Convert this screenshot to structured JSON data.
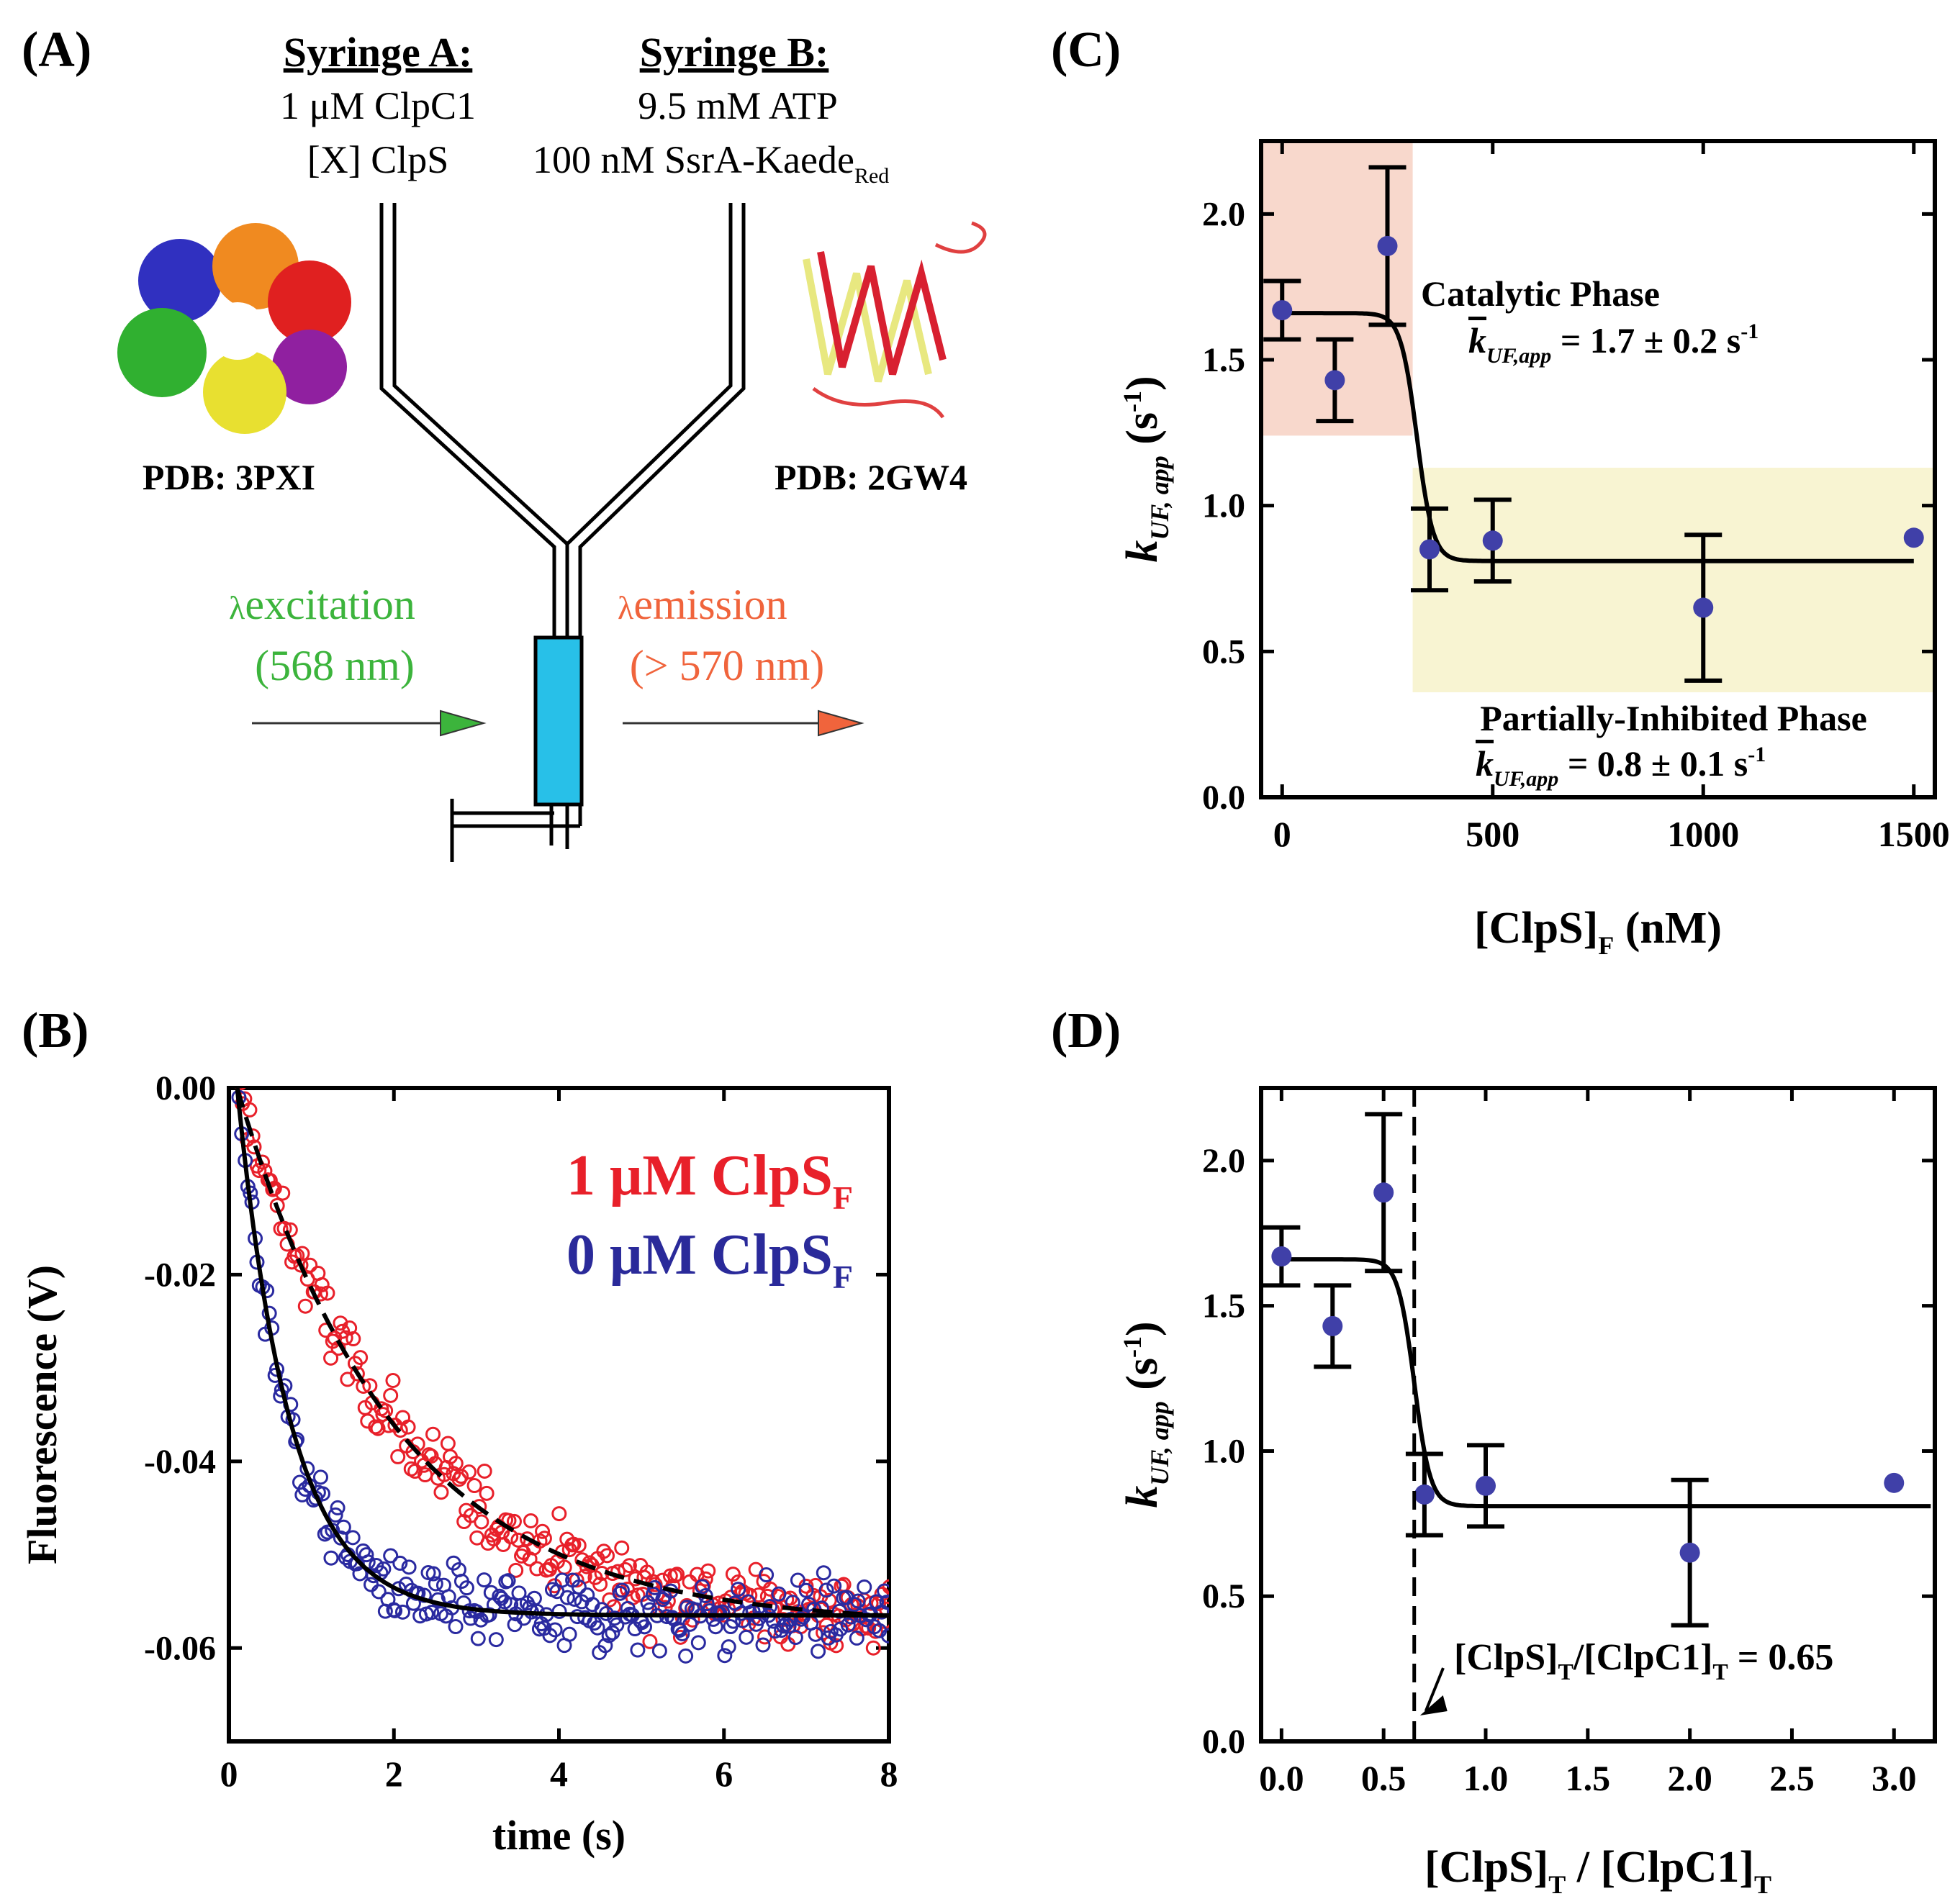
{
  "panels": {
    "a": {
      "letter": "(A)",
      "syringe_a": {
        "title": "Syringe A:",
        "line1": "1 μM ClpC1",
        "line2": "[X] ClpS"
      },
      "syringe_b": {
        "title": "Syringe B:",
        "line1": "9.5 mM ATP",
        "line2": "100 nM SsrA-Kaede",
        "line2_sub": "Red"
      },
      "pdb_left": "PDB: 3PXI",
      "pdb_right": "PDB: 2GW4",
      "excitation": {
        "lambda": "λ",
        "word": "excitation",
        "nm": "(568 nm)"
      },
      "emission": {
        "lambda": "λ",
        "word": "emission",
        "nm": "(> 570 nm)"
      },
      "colors": {
        "excitation": "#3cb43c",
        "emission": "#f0643c",
        "cuvette": "#28c0e8"
      }
    },
    "b": {
      "letter": "(B)"
    },
    "c": {
      "letter": "(C)"
    },
    "d": {
      "letter": "(D)"
    }
  },
  "chart_data": [
    {
      "id": "B",
      "type": "scatter",
      "xlabel": "time (s)",
      "ylabel": "Fluorescence (V)",
      "xlim": [
        0,
        8
      ],
      "ylim": [
        -0.07,
        0.0
      ],
      "xticks": [
        0,
        2,
        4,
        6,
        8
      ],
      "yticks": [
        0.0,
        -0.02,
        -0.04,
        -0.06
      ],
      "ytick_labels": [
        "0.00",
        "-0.02",
        "-0.04",
        "-0.06"
      ],
      "legend": [
        {
          "text": "1 μM ClpS",
          "sub": "F",
          "color": "#e8202a"
        },
        {
          "text": "0 μM ClpS",
          "sub": "F",
          "color": "#2a2a9a"
        }
      ],
      "series": [
        {
          "name": "1 μM ClpS_F",
          "color": "#e8202a",
          "marker": "open-circle",
          "fit": {
            "style": "dashed",
            "y0": 0.0,
            "yinf": -0.0575,
            "k": 0.52,
            "t0": 0.1
          },
          "n_points": 260,
          "noise": 0.0028
        },
        {
          "name": "0 μM ClpS_F",
          "color": "#2a2aa0",
          "marker": "open-circle",
          "fit": {
            "style": "solid",
            "y0": 0.0,
            "yinf": -0.0565,
            "k": 1.55,
            "t0": 0.1
          },
          "n_points": 260,
          "noise": 0.0028
        }
      ]
    },
    {
      "id": "C",
      "type": "scatter",
      "xlabel": "[ClpS]",
      "xlabel_sub": "F",
      "xlabel_tail": " (nM)",
      "ylabel": "k",
      "ylabel_sub": "UF, app",
      "ylabel_tail": " (s",
      "ylabel_sup": "-1",
      "ylabel_end": ")",
      "xlim": [
        -50,
        1550
      ],
      "ylim": [
        0,
        2.25
      ],
      "xticks": [
        0,
        500,
        1000,
        1500
      ],
      "yticks": [
        0.0,
        0.5,
        1.0,
        1.5,
        2.0
      ],
      "ytick_labels": [
        "0.0",
        "0.5",
        "1.0",
        "1.5",
        "2.0"
      ],
      "points": [
        {
          "x": 0,
          "y": 1.67,
          "err": 0.1
        },
        {
          "x": 125,
          "y": 1.43,
          "err": 0.14
        },
        {
          "x": 250,
          "y": 1.89,
          "err": 0.27
        },
        {
          "x": 350,
          "y": 0.85,
          "err": 0.14
        },
        {
          "x": 500,
          "y": 0.88,
          "err": 0.14
        },
        {
          "x": 1000,
          "y": 0.65,
          "err": 0.25
        },
        {
          "x": 1500,
          "y": 0.89,
          "err": 0
        }
      ],
      "fit": {
        "high": 1.66,
        "low": 0.81,
        "x_transition": 320,
        "x_end": 1500
      },
      "regions": [
        {
          "name": "Catalytic Phase",
          "x0": -50,
          "x1": 310,
          "y0": 1.24,
          "y1": 2.25,
          "color": "#f8d8cc"
        },
        {
          "name": "Partially-Inhibited Phase",
          "x0": 310,
          "x1": 1550,
          "y0": 0.36,
          "y1": 1.13,
          "color": "#f8f4d2"
        }
      ],
      "annotations": [
        {
          "title": "Catalytic Phase",
          "k": "k",
          "sub": "UF,app",
          "value": " = 1.7 ± 0.2 s",
          "sup": "-1"
        },
        {
          "title": "Partially-Inhibited Phase",
          "k": "k",
          "sub": "UF,app",
          "value": " = 0.8 ± 0.1 s",
          "sup": "-1"
        }
      ]
    },
    {
      "id": "D",
      "type": "scatter",
      "xlabel": "[ClpS]",
      "xlabel_sub": "T",
      "xlabel_mid": " / [ClpC1]",
      "xlabel_sub2": "T",
      "ylabel": "k",
      "ylabel_sub": "UF, app",
      "ylabel_tail": " (s",
      "ylabel_sup": "-1",
      "ylabel_end": ")",
      "xlim": [
        -0.1,
        3.2
      ],
      "ylim": [
        0,
        2.25
      ],
      "xticks": [
        0.0,
        0.5,
        1.0,
        1.5,
        2.0,
        2.5,
        3.0
      ],
      "xtick_labels": [
        "0.0",
        "0.5",
        "1.0",
        "1.5",
        "2.0",
        "2.5",
        "3.0"
      ],
      "yticks": [
        0.0,
        0.5,
        1.0,
        1.5,
        2.0
      ],
      "ytick_labels": [
        "0.0",
        "0.5",
        "1.0",
        "1.5",
        "2.0"
      ],
      "points": [
        {
          "x": 0.0,
          "y": 1.67,
          "err": 0.1
        },
        {
          "x": 0.25,
          "y": 1.43,
          "err": 0.14
        },
        {
          "x": 0.5,
          "y": 1.89,
          "err": 0.27
        },
        {
          "x": 0.7,
          "y": 0.85,
          "err": 0.14
        },
        {
          "x": 1.0,
          "y": 0.88,
          "err": 0.14
        },
        {
          "x": 2.0,
          "y": 0.65,
          "err": 0.25
        },
        {
          "x": 3.0,
          "y": 0.89,
          "err": 0
        }
      ],
      "fit": {
        "high": 1.66,
        "low": 0.81,
        "x_transition": 0.65,
        "x_end": 3.18
      },
      "vline": 0.65,
      "annotation": {
        "a": "[ClpS]",
        "a_sub": "T",
        "b": "/[ClpC1]",
        "b_sub": "T",
        "c": " = 0.65"
      }
    }
  ]
}
